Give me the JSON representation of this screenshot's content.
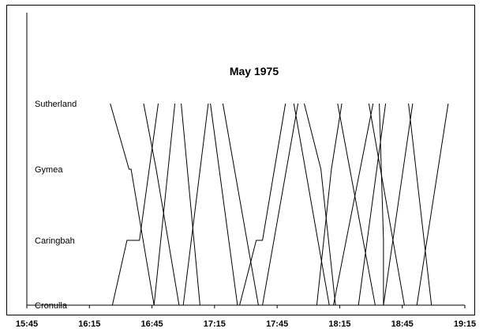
{
  "chart_data": {
    "type": "line",
    "title": "May 1975",
    "x_axis": {
      "min": "15:45",
      "max": "19:15",
      "tick_labels": [
        "15:45",
        "16:15",
        "16:45",
        "17:15",
        "17:45",
        "18:15",
        "18:45",
        "19:15"
      ]
    },
    "y_axis": {
      "categories": [
        "Cronulla",
        "Caringbah",
        "Gymea",
        "Sutherland"
      ]
    },
    "grid": false,
    "legend": "none",
    "series": [
      {
        "points": [
          [
            "16:25",
            "Sutherland"
          ],
          [
            "16:34",
            "Gymea"
          ],
          [
            "16:35",
            "Gymea"
          ],
          [
            "16:46",
            "Cronulla"
          ]
        ]
      },
      {
        "points": [
          [
            "16:26",
            "Cronulla"
          ],
          [
            "16:33",
            "Caringbah"
          ],
          [
            "16:39",
            "Caringbah"
          ],
          [
            "16:48",
            "Sutherland"
          ]
        ]
      },
      {
        "points": [
          [
            "16:41",
            "Sutherland"
          ],
          [
            "16:47",
            "Gymea"
          ],
          [
            "16:58",
            "Cronulla"
          ]
        ]
      },
      {
        "points": [
          [
            "16:46",
            "Cronulla"
          ],
          [
            "16:56",
            "Sutherland"
          ]
        ]
      },
      {
        "points": [
          [
            "16:59",
            "Sutherland"
          ],
          [
            "17:08",
            "Cronulla"
          ]
        ]
      },
      {
        "points": [
          [
            "17:00",
            "Cronulla"
          ],
          [
            "17:12",
            "Sutherland"
          ]
        ]
      },
      {
        "points": [
          [
            "17:13",
            "Sutherland"
          ],
          [
            "17:26",
            "Cronulla"
          ]
        ]
      },
      {
        "points": [
          [
            "17:19",
            "Sutherland"
          ],
          [
            "17:36",
            "Cronulla"
          ]
        ]
      },
      {
        "points": [
          [
            "17:27",
            "Cronulla"
          ],
          [
            "17:35",
            "Caringbah"
          ],
          [
            "17:38",
            "Caringbah"
          ],
          [
            "17:49",
            "Sutherland"
          ]
        ]
      },
      {
        "points": [
          [
            "17:38",
            "Cronulla"
          ],
          [
            "17:55",
            "Sutherland"
          ]
        ]
      },
      {
        "points": [
          [
            "17:53",
            "Sutherland"
          ],
          [
            "18:10",
            "Cronulla"
          ]
        ]
      },
      {
        "points": [
          [
            "17:58",
            "Sutherland"
          ],
          [
            "18:06",
            "Gymea"
          ],
          [
            "18:13",
            "Cronulla"
          ]
        ]
      },
      {
        "points": [
          [
            "18:04",
            "Cronulla"
          ],
          [
            "18:11",
            "Gymea"
          ],
          [
            "18:16",
            "Sutherland"
          ]
        ]
      },
      {
        "points": [
          [
            "18:14",
            "Sutherland"
          ],
          [
            "18:32",
            "Cronulla"
          ]
        ]
      },
      {
        "points": [
          [
            "18:12",
            "Cronulla"
          ],
          [
            "18:31",
            "Sutherland"
          ]
        ]
      },
      {
        "points": [
          [
            "18:24",
            "Cronulla"
          ],
          [
            "18:37",
            "Sutherland"
          ]
        ]
      },
      {
        "points": [
          [
            "18:29",
            "Sutherland"
          ],
          [
            "18:46",
            "Cronulla"
          ]
        ]
      },
      {
        "points": [
          [
            "18:36",
            "Cronulla"
          ],
          [
            "18:50",
            "Sutherland"
          ]
        ]
      },
      {
        "points": [
          [
            "18:48",
            "Sutherland"
          ],
          [
            "18:59",
            "Cronulla"
          ]
        ]
      },
      {
        "points": [
          [
            "18:52",
            "Cronulla"
          ],
          [
            "19:07",
            "Sutherland"
          ]
        ]
      },
      {
        "points": [
          [
            "18:34",
            "Sutherland"
          ],
          [
            "18:36",
            "Caringbah"
          ],
          [
            "18:36",
            "Cronulla"
          ]
        ]
      }
    ]
  }
}
